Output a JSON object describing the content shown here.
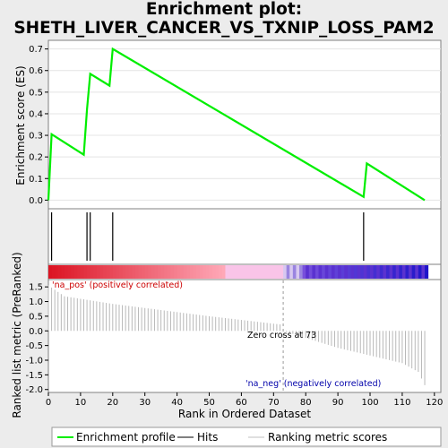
{
  "title_line1": "Enrichment plot:",
  "title_line2": "SHETH_LIVER_CANCER_VS_TXNIP_LOSS_PAM2",
  "colors": {
    "es_line": "#00ee00",
    "hits": "#000000",
    "metric_bars": "#b8b8b8",
    "pos_label": "#cc0000",
    "neg_label": "#0000aa"
  },
  "chart_data": [
    {
      "type": "line",
      "name": "enrichment-profile",
      "ylabel": "Enrichment score (ES)",
      "xlim": [
        0,
        122
      ],
      "ylim": [
        -0.04,
        0.74
      ],
      "yticks": [
        0.0,
        0.1,
        0.2,
        0.3,
        0.4,
        0.5,
        0.6,
        0.7
      ],
      "x": [
        0,
        1,
        11,
        12,
        13,
        19,
        20,
        98,
        99,
        117
      ],
      "y": [
        0.0,
        0.305,
        0.21,
        0.42,
        0.585,
        0.53,
        0.7,
        0.015,
        0.17,
        0.0
      ]
    },
    {
      "type": "hits",
      "name": "hits",
      "x": [
        1,
        12,
        13,
        20,
        98
      ]
    },
    {
      "type": "bar",
      "name": "ranked-list-metric",
      "ylabel": "Ranked list metric (PreRanked)",
      "xlabel": "Rank in Ordered Dataset",
      "xlim": [
        0,
        122
      ],
      "ylim": [
        -2.1,
        1.75
      ],
      "xticks": [
        0,
        10,
        20,
        30,
        40,
        50,
        60,
        70,
        80,
        90,
        100,
        110,
        120
      ],
      "yticks": [
        -2.0,
        -1.5,
        -1.0,
        -0.5,
        0.0,
        0.5,
        1.0,
        1.5
      ],
      "anchors": {
        "x": [
          0,
          5,
          20,
          50,
          72,
          73,
          90,
          110,
          115,
          117
        ],
        "y": [
          1.55,
          1.18,
          0.92,
          0.5,
          0.22,
          0.0,
          -0.58,
          -1.1,
          -1.4,
          -1.85
        ]
      },
      "zero_cross": 73
    }
  ],
  "annotations": {
    "pos_label": "'na_pos' (positively correlated)",
    "neg_label": "'na_neg' (negatively correlated)",
    "zero_cross_label": "Zero cross at 73"
  },
  "legend": {
    "es": "Enrichment profile",
    "hits": "Hits",
    "metric": "Ranking metric scores"
  }
}
